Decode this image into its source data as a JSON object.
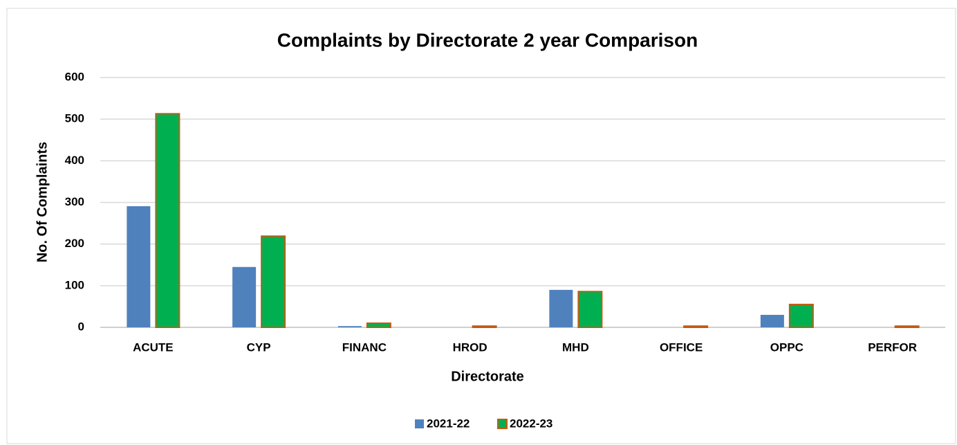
{
  "chart_data": {
    "type": "bar",
    "title": "Complaints by Directorate 2 year Comparison",
    "x_label": "Directorate",
    "y_label": "No. Of Complaints",
    "categories": [
      "ACUTE",
      "CYP",
      "FINANC",
      "HROD",
      "MHD",
      "OFFICE",
      "OPPC",
      "PERFOR"
    ],
    "series": [
      {
        "name": "2021-22",
        "color": "#4f81bd",
        "values": [
          291,
          145,
          3,
          0,
          90,
          0,
          30,
          0
        ]
      },
      {
        "name": "2022-23",
        "color": "#00b050",
        "edgecolor": "#c55a11",
        "values": [
          513,
          219,
          10,
          3,
          86,
          3,
          55,
          3
        ]
      }
    ],
    "ylim": [
      0,
      600
    ],
    "yticks": [
      0,
      100,
      200,
      300,
      400,
      500,
      600
    ],
    "grid": true,
    "legend": "bottom"
  }
}
